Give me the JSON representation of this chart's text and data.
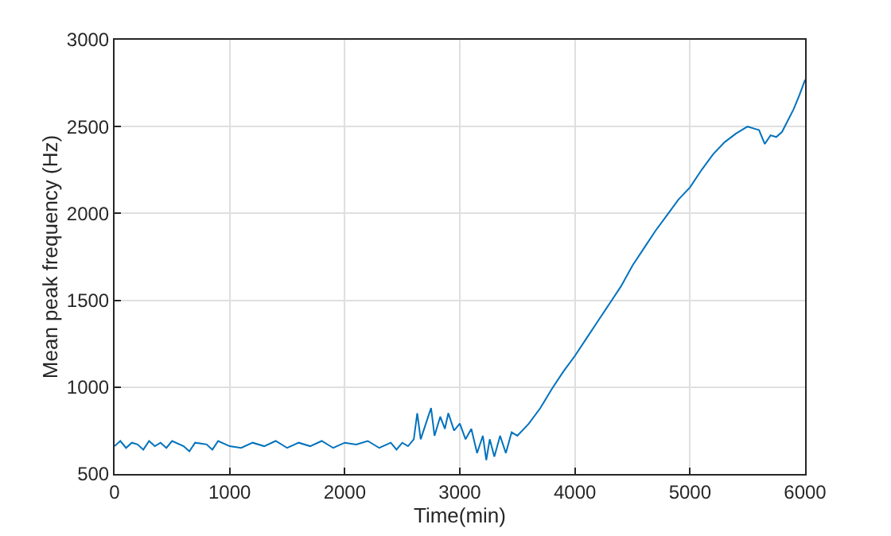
{
  "chart_data": {
    "type": "line",
    "xlabel": "Time(min)",
    "ylabel": "Mean peak frequency (Hz)",
    "x": [
      0,
      50,
      100,
      150,
      200,
      250,
      300,
      350,
      400,
      450,
      500,
      600,
      650,
      700,
      800,
      850,
      900,
      1000,
      1100,
      1200,
      1300,
      1400,
      1500,
      1600,
      1700,
      1800,
      1900,
      2000,
      2100,
      2200,
      2300,
      2400,
      2450,
      2500,
      2550,
      2600,
      2630,
      2660,
      2700,
      2750,
      2780,
      2830,
      2870,
      2900,
      2950,
      3000,
      3050,
      3100,
      3150,
      3200,
      3230,
      3260,
      3300,
      3350,
      3400,
      3450,
      3500,
      3600,
      3700,
      3800,
      3900,
      4000,
      4100,
      4200,
      4300,
      4400,
      4500,
      4600,
      4700,
      4800,
      4900,
      5000,
      5100,
      5200,
      5300,
      5400,
      5500,
      5550,
      5600,
      5650,
      5700,
      5750,
      5800,
      5900,
      5950,
      6000
    ],
    "series": [
      {
        "color": "#0072bd",
        "values": [
          660,
          690,
          650,
          680,
          670,
          640,
          690,
          660,
          680,
          650,
          690,
          660,
          630,
          680,
          670,
          640,
          690,
          660,
          650,
          680,
          660,
          690,
          650,
          680,
          660,
          690,
          650,
          680,
          670,
          690,
          650,
          680,
          640,
          680,
          660,
          700,
          850,
          700,
          780,
          880,
          720,
          830,
          760,
          850,
          750,
          790,
          700,
          760,
          620,
          720,
          580,
          700,
          600,
          720,
          620,
          740,
          720,
          790,
          880,
          990,
          1090,
          1180,
          1280,
          1380,
          1480,
          1580,
          1700,
          1800,
          1900,
          1990,
          2080,
          2150,
          2250,
          2340,
          2410,
          2460,
          2500,
          2490,
          2480,
          2400,
          2450,
          2440,
          2470,
          2600,
          2680,
          2770
        ]
      }
    ],
    "xlim": [
      0,
      6000
    ],
    "xticks": [
      0,
      1000,
      2000,
      3000,
      4000,
      5000,
      6000
    ],
    "ylim": [
      500,
      3000
    ],
    "yticks": [
      500,
      1000,
      1500,
      2000,
      2500,
      3000
    ],
    "grid": true,
    "marker": "none",
    "line_style": "solid"
  }
}
